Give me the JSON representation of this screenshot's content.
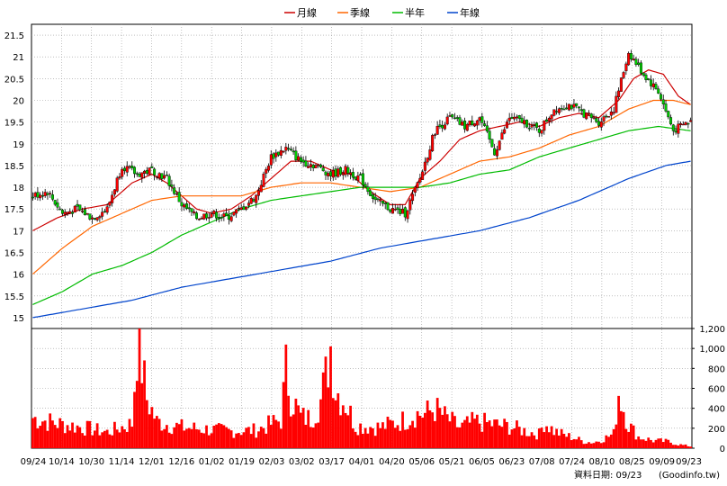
{
  "legend": [
    {
      "label": "月線",
      "color": "#cc0000"
    },
    {
      "label": "季線",
      "color": "#ff6600"
    },
    {
      "label": "半年",
      "color": "#00bb00"
    },
    {
      "label": "年線",
      "color": "#0044cc"
    }
  ],
  "footer": {
    "date_label": "資料日期: 09/23",
    "source": "(Goodinfo.tw)"
  },
  "chart_data": {
    "type": "candlestick",
    "price_axis": {
      "range": [
        14.75,
        21.75
      ],
      "ticks": [
        "21.5",
        "21",
        "20.5",
        "20",
        "19.5",
        "19",
        "18.5",
        "18",
        "17.5",
        "17",
        "16.5",
        "16",
        "15.5",
        "15"
      ]
    },
    "volume_axis": {
      "range": [
        0,
        1200
      ],
      "ticks": [
        "1,200",
        "1,000",
        "800",
        "600",
        "400",
        "200",
        "0"
      ]
    },
    "date_labels": [
      "09/24",
      "10/14",
      "10/30",
      "11/14",
      "12/01",
      "12/16",
      "01/02",
      "01/19",
      "02/03",
      "03/02",
      "03/17",
      "04/01",
      "04/20",
      "05/06",
      "05/21",
      "06/05",
      "06/23",
      "07/08",
      "07/24",
      "08/10",
      "08/25",
      "09/09",
      "09/23"
    ],
    "close_anchors": [
      [
        0,
        17.8
      ],
      [
        6,
        17.9
      ],
      [
        12,
        17.4
      ],
      [
        18,
        17.5
      ],
      [
        24,
        17.3
      ],
      [
        30,
        17.5
      ],
      [
        36,
        18.5
      ],
      [
        42,
        18.3
      ],
      [
        48,
        18.4
      ],
      [
        54,
        18.2
      ],
      [
        60,
        17.6
      ],
      [
        66,
        17.3
      ],
      [
        72,
        17.4
      ],
      [
        78,
        17.3
      ],
      [
        84,
        17.5
      ],
      [
        90,
        17.8
      ],
      [
        96,
        18.7
      ],
      [
        102,
        18.9
      ],
      [
        108,
        18.6
      ],
      [
        114,
        18.5
      ],
      [
        120,
        18.3
      ],
      [
        126,
        18.4
      ],
      [
        132,
        18.2
      ],
      [
        138,
        17.7
      ],
      [
        144,
        17.5
      ],
      [
        150,
        17.4
      ],
      [
        156,
        18.2
      ],
      [
        162,
        19.3
      ],
      [
        168,
        19.6
      ],
      [
        174,
        19.4
      ],
      [
        180,
        19.6
      ],
      [
        186,
        18.8
      ],
      [
        192,
        19.6
      ],
      [
        198,
        19.5
      ],
      [
        204,
        19.3
      ],
      [
        210,
        19.8
      ],
      [
        216,
        19.9
      ],
      [
        222,
        19.7
      ],
      [
        228,
        19.5
      ],
      [
        234,
        19.8
      ],
      [
        240,
        21.1
      ],
      [
        246,
        20.6
      ],
      [
        252,
        20.2
      ],
      [
        258,
        19.3
      ],
      [
        264,
        19.5
      ]
    ],
    "ma_series": [
      {
        "name": "月線",
        "color": "#cc0000",
        "points": [
          [
            0,
            17.0
          ],
          [
            10,
            17.3
          ],
          [
            20,
            17.5
          ],
          [
            30,
            17.6
          ],
          [
            40,
            18.1
          ],
          [
            48,
            18.3
          ],
          [
            54,
            18.1
          ],
          [
            60,
            17.8
          ],
          [
            66,
            17.5
          ],
          [
            72,
            17.4
          ],
          [
            80,
            17.5
          ],
          [
            88,
            17.8
          ],
          [
            96,
            18.2
          ],
          [
            104,
            18.6
          ],
          [
            112,
            18.6
          ],
          [
            120,
            18.4
          ],
          [
            128,
            18.3
          ],
          [
            136,
            17.9
          ],
          [
            144,
            17.6
          ],
          [
            150,
            17.6
          ],
          [
            156,
            18.2
          ],
          [
            164,
            18.6
          ],
          [
            172,
            19.1
          ],
          [
            180,
            19.3
          ],
          [
            188,
            19.4
          ],
          [
            196,
            19.5
          ],
          [
            204,
            19.4
          ],
          [
            212,
            19.6
          ],
          [
            220,
            19.7
          ],
          [
            228,
            19.6
          ],
          [
            236,
            20.0
          ],
          [
            242,
            20.5
          ],
          [
            248,
            20.7
          ],
          [
            254,
            20.6
          ],
          [
            260,
            20.1
          ],
          [
            265,
            19.9
          ]
        ]
      },
      {
        "name": "季線",
        "color": "#ff6600",
        "points": [
          [
            0,
            16.0
          ],
          [
            12,
            16.6
          ],
          [
            24,
            17.1
          ],
          [
            36,
            17.4
          ],
          [
            48,
            17.7
          ],
          [
            60,
            17.8
          ],
          [
            72,
            17.8
          ],
          [
            84,
            17.8
          ],
          [
            96,
            18.0
          ],
          [
            108,
            18.1
          ],
          [
            120,
            18.1
          ],
          [
            132,
            18.0
          ],
          [
            144,
            17.9
          ],
          [
            156,
            18.0
          ],
          [
            168,
            18.3
          ],
          [
            180,
            18.6
          ],
          [
            192,
            18.7
          ],
          [
            204,
            18.9
          ],
          [
            216,
            19.2
          ],
          [
            228,
            19.4
          ],
          [
            240,
            19.8
          ],
          [
            250,
            20.0
          ],
          [
            258,
            20.0
          ],
          [
            265,
            19.9
          ]
        ]
      },
      {
        "name": "半年",
        "color": "#00bb00",
        "points": [
          [
            0,
            15.3
          ],
          [
            12,
            15.6
          ],
          [
            24,
            16.0
          ],
          [
            36,
            16.2
          ],
          [
            48,
            16.5
          ],
          [
            60,
            16.9
          ],
          [
            72,
            17.2
          ],
          [
            84,
            17.5
          ],
          [
            96,
            17.7
          ],
          [
            108,
            17.8
          ],
          [
            120,
            17.9
          ],
          [
            132,
            18.0
          ],
          [
            144,
            18.0
          ],
          [
            156,
            18.0
          ],
          [
            168,
            18.1
          ],
          [
            180,
            18.3
          ],
          [
            192,
            18.4
          ],
          [
            204,
            18.7
          ],
          [
            216,
            18.9
          ],
          [
            228,
            19.1
          ],
          [
            240,
            19.3
          ],
          [
            252,
            19.4
          ],
          [
            265,
            19.3
          ]
        ]
      },
      {
        "name": "年線",
        "color": "#0044cc",
        "points": [
          [
            0,
            15.0
          ],
          [
            20,
            15.2
          ],
          [
            40,
            15.4
          ],
          [
            60,
            15.7
          ],
          [
            80,
            15.9
          ],
          [
            100,
            16.1
          ],
          [
            120,
            16.3
          ],
          [
            140,
            16.6
          ],
          [
            160,
            16.8
          ],
          [
            180,
            17.0
          ],
          [
            200,
            17.3
          ],
          [
            220,
            17.7
          ],
          [
            240,
            18.2
          ],
          [
            255,
            18.5
          ],
          [
            265,
            18.6
          ]
        ]
      }
    ],
    "volume_anchors": [
      [
        0,
        320
      ],
      [
        10,
        260
      ],
      [
        20,
        220
      ],
      [
        30,
        170
      ],
      [
        40,
        260
      ],
      [
        42,
        1100
      ],
      [
        44,
        880
      ],
      [
        46,
        520
      ],
      [
        50,
        280
      ],
      [
        60,
        220
      ],
      [
        70,
        200
      ],
      [
        80,
        180
      ],
      [
        90,
        190
      ],
      [
        100,
        300
      ],
      [
        102,
        820
      ],
      [
        104,
        560
      ],
      [
        108,
        330
      ],
      [
        112,
        310
      ],
      [
        116,
        500
      ],
      [
        118,
        750
      ],
      [
        120,
        1080
      ],
      [
        122,
        620
      ],
      [
        126,
        480
      ],
      [
        130,
        240
      ],
      [
        140,
        220
      ],
      [
        150,
        300
      ],
      [
        154,
        360
      ],
      [
        158,
        360
      ],
      [
        162,
        420
      ],
      [
        166,
        330
      ],
      [
        172,
        220
      ],
      [
        178,
        280
      ],
      [
        184,
        260
      ],
      [
        188,
        240
      ],
      [
        192,
        230
      ],
      [
        196,
        200
      ],
      [
        200,
        170
      ],
      [
        204,
        150
      ],
      [
        206,
        280
      ],
      [
        210,
        180
      ],
      [
        214,
        140
      ],
      [
        218,
        110
      ],
      [
        222,
        70
      ],
      [
        226,
        60
      ],
      [
        230,
        100
      ],
      [
        234,
        150
      ],
      [
        236,
        600
      ],
      [
        238,
        420
      ],
      [
        240,
        250
      ],
      [
        244,
        120
      ],
      [
        250,
        80
      ],
      [
        256,
        70
      ],
      [
        260,
        40
      ],
      [
        265,
        20
      ]
    ]
  }
}
